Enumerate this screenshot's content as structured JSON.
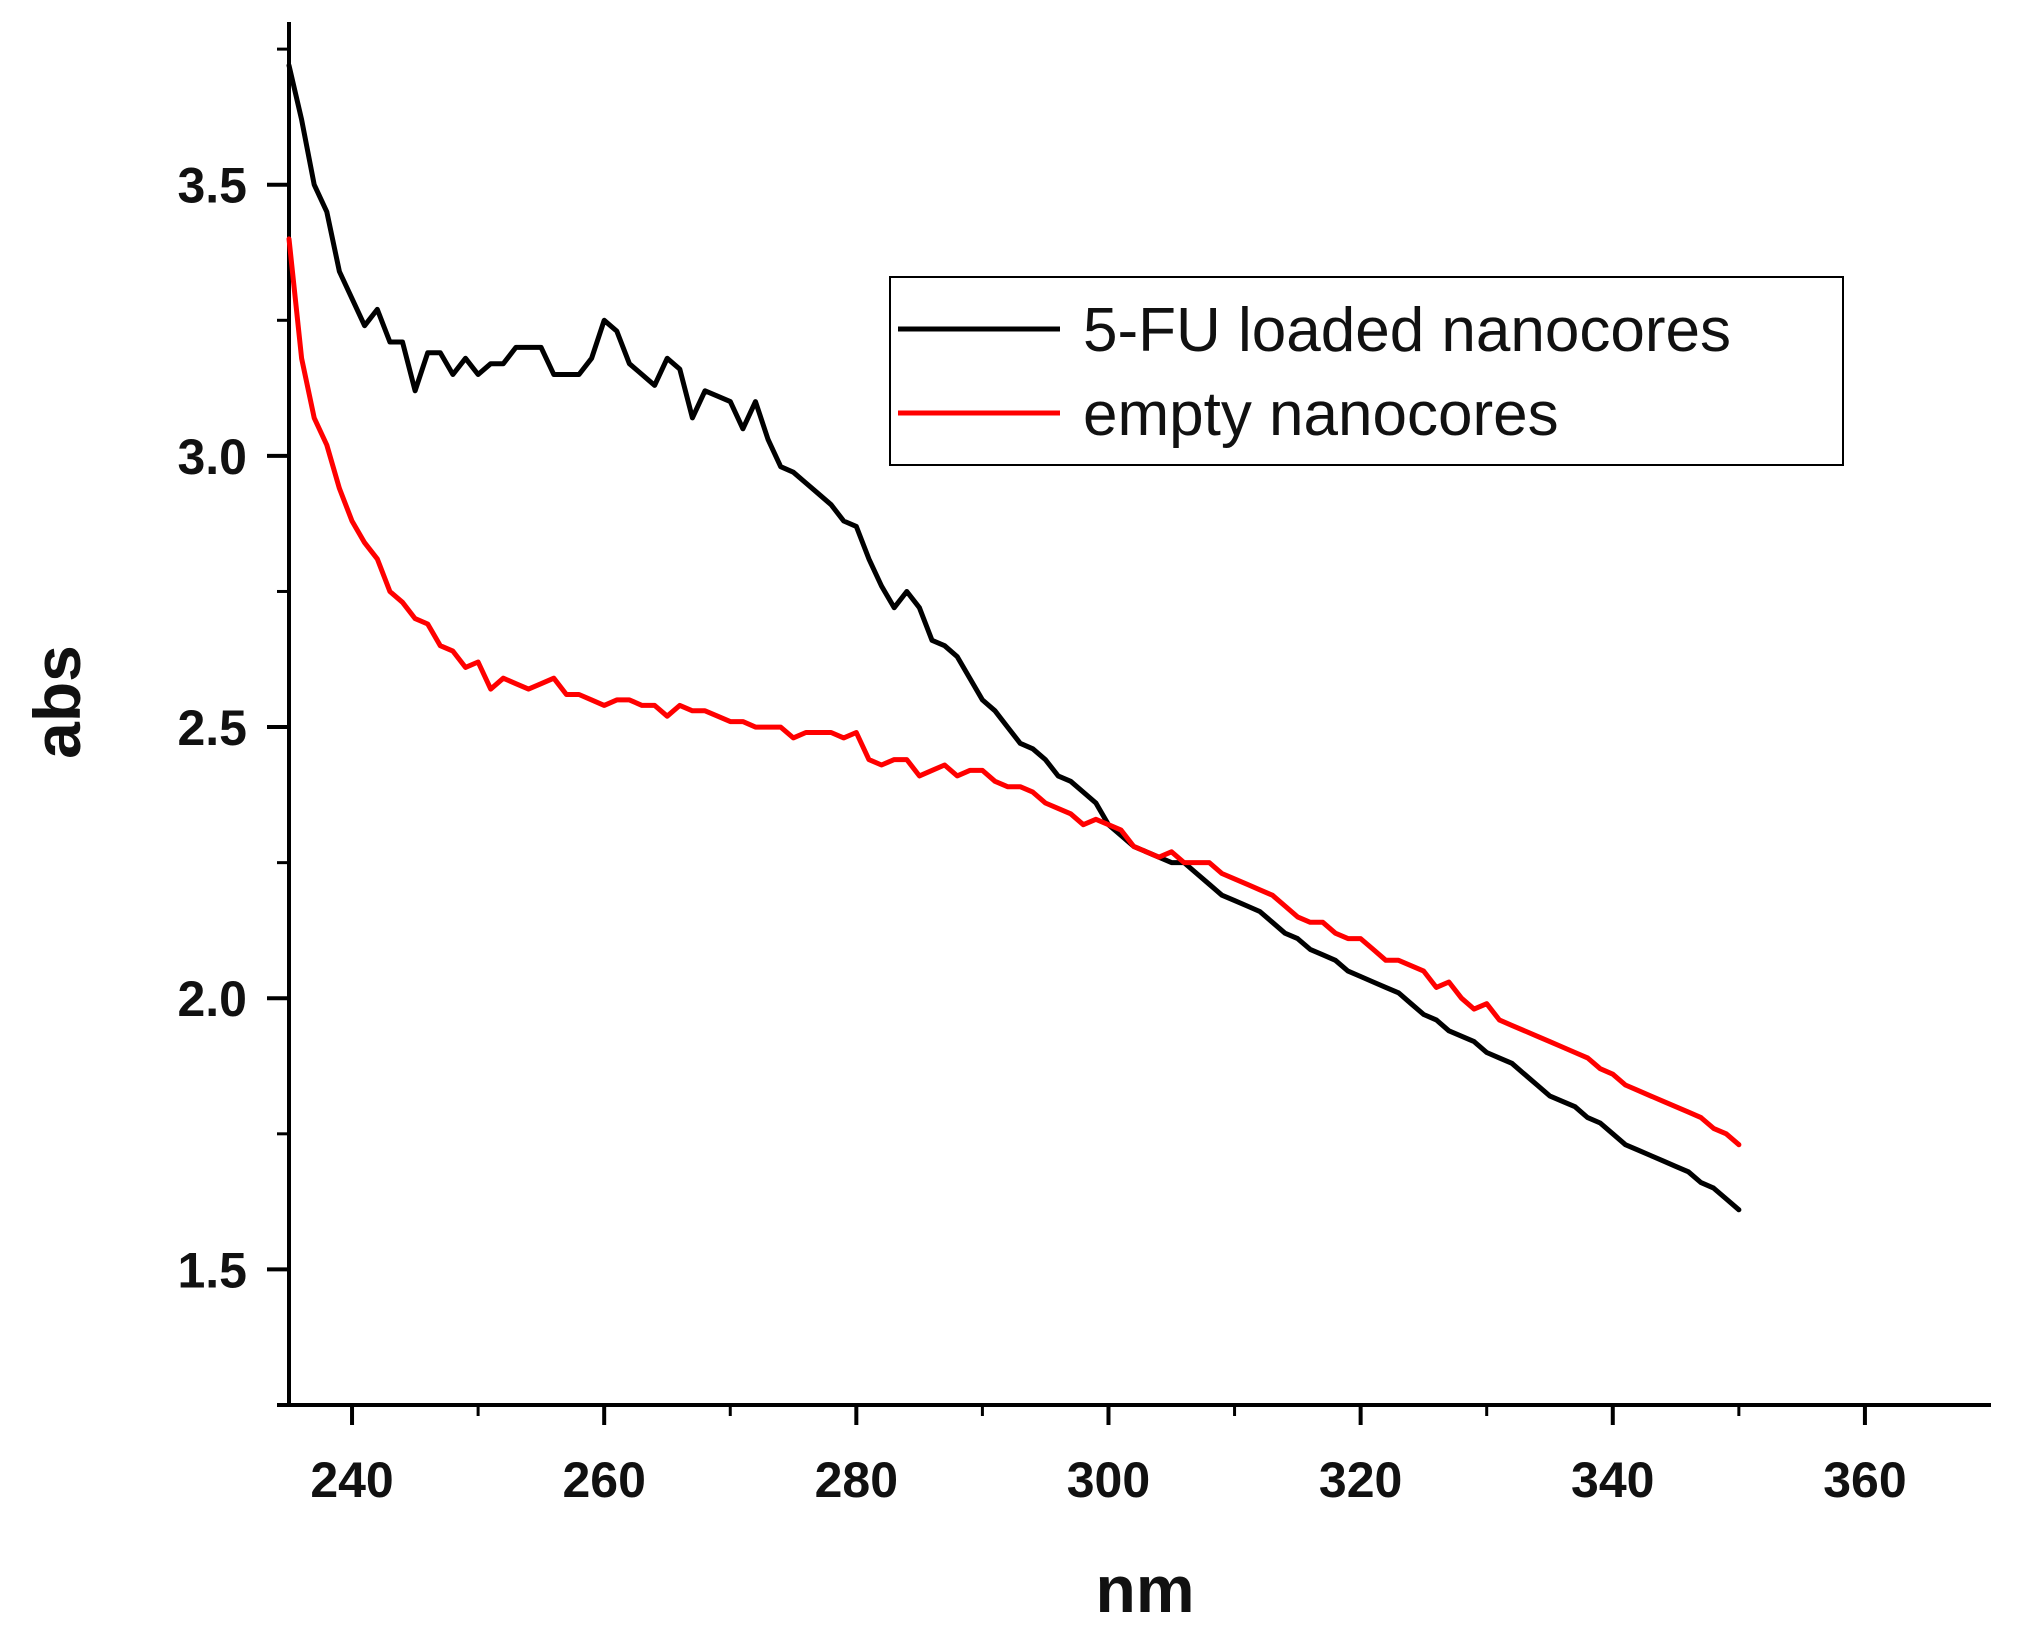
{
  "chart_data": {
    "type": "line",
    "title": "",
    "xlabel": "nm",
    "ylabel": "abs",
    "xlim": [
      235,
      370
    ],
    "ylim": [
      1.25,
      3.8
    ],
    "xticks": [
      240,
      260,
      280,
      300,
      320,
      340,
      360
    ],
    "xtick_labels": [
      "240",
      "260",
      "280",
      "300",
      "320",
      "340",
      "360"
    ],
    "yticks": [
      1.5,
      2.0,
      2.5,
      3.0,
      3.5
    ],
    "ytick_labels": [
      "1.5",
      "2.0",
      "2.5",
      "3.0",
      "3.5"
    ],
    "grid": false,
    "legend_position": "top-right",
    "series": [
      {
        "name": "5-FU loaded nanocores",
        "color": "#000000",
        "x": [
          235,
          236,
          237,
          238,
          239,
          240,
          241,
          242,
          243,
          244,
          245,
          246,
          247,
          248,
          249,
          250,
          251,
          252,
          253,
          254,
          255,
          256,
          257,
          258,
          259,
          260,
          261,
          262,
          263,
          264,
          265,
          266,
          267,
          268,
          269,
          270,
          271,
          272,
          273,
          274,
          275,
          276,
          277,
          278,
          279,
          280,
          281,
          282,
          283,
          284,
          285,
          286,
          287,
          288,
          289,
          290,
          291,
          292,
          293,
          294,
          295,
          296,
          297,
          298,
          299,
          300,
          301,
          302,
          303,
          304,
          305,
          306,
          307,
          308,
          309,
          310,
          311,
          312,
          313,
          314,
          315,
          316,
          317,
          318,
          319,
          320,
          321,
          322,
          323,
          324,
          325,
          326,
          327,
          328,
          329,
          330,
          331,
          332,
          333,
          334,
          335,
          336,
          337,
          338,
          339,
          340,
          341,
          342,
          343,
          344,
          345,
          346,
          347,
          348,
          349,
          350
        ],
        "y": [
          3.72,
          3.62,
          3.5,
          3.45,
          3.34,
          3.29,
          3.24,
          3.27,
          3.21,
          3.21,
          3.12,
          3.19,
          3.19,
          3.15,
          3.18,
          3.15,
          3.17,
          3.17,
          3.2,
          3.2,
          3.2,
          3.15,
          3.15,
          3.15,
          3.18,
          3.25,
          3.23,
          3.17,
          3.15,
          3.13,
          3.18,
          3.16,
          3.07,
          3.12,
          3.11,
          3.1,
          3.05,
          3.1,
          3.03,
          2.98,
          2.97,
          2.95,
          2.93,
          2.91,
          2.88,
          2.87,
          2.81,
          2.76,
          2.72,
          2.75,
          2.72,
          2.66,
          2.65,
          2.63,
          2.59,
          2.55,
          2.53,
          2.5,
          2.47,
          2.46,
          2.44,
          2.41,
          2.4,
          2.38,
          2.36,
          2.32,
          2.3,
          2.28,
          2.27,
          2.26,
          2.25,
          2.25,
          2.23,
          2.21,
          2.19,
          2.18,
          2.17,
          2.16,
          2.14,
          2.12,
          2.11,
          2.09,
          2.08,
          2.07,
          2.05,
          2.04,
          2.03,
          2.02,
          2.01,
          1.99,
          1.97,
          1.96,
          1.94,
          1.93,
          1.92,
          1.9,
          1.89,
          1.88,
          1.86,
          1.84,
          1.82,
          1.81,
          1.8,
          1.78,
          1.77,
          1.75,
          1.73,
          1.72,
          1.71,
          1.7,
          1.69,
          1.68,
          1.66,
          1.65,
          1.63,
          1.61
        ]
      },
      {
        "name": "empty nanocores",
        "color": "#ff0000",
        "x": [
          235,
          236,
          237,
          238,
          239,
          240,
          241,
          242,
          243,
          244,
          245,
          246,
          247,
          248,
          249,
          250,
          251,
          252,
          253,
          254,
          255,
          256,
          257,
          258,
          259,
          260,
          261,
          262,
          263,
          264,
          265,
          266,
          267,
          268,
          269,
          270,
          271,
          272,
          273,
          274,
          275,
          276,
          277,
          278,
          279,
          280,
          281,
          282,
          283,
          284,
          285,
          286,
          287,
          288,
          289,
          290,
          291,
          292,
          293,
          294,
          295,
          296,
          297,
          298,
          299,
          300,
          301,
          302,
          303,
          304,
          305,
          306,
          307,
          308,
          309,
          310,
          311,
          312,
          313,
          314,
          315,
          316,
          317,
          318,
          319,
          320,
          321,
          322,
          323,
          324,
          325,
          326,
          327,
          328,
          329,
          330,
          331,
          332,
          333,
          334,
          335,
          336,
          337,
          338,
          339,
          340,
          341,
          342,
          343,
          344,
          345,
          346,
          347,
          348,
          349,
          350
        ],
        "y": [
          3.4,
          3.18,
          3.07,
          3.02,
          2.94,
          2.88,
          2.84,
          2.81,
          2.75,
          2.73,
          2.7,
          2.69,
          2.65,
          2.64,
          2.61,
          2.62,
          2.57,
          2.59,
          2.58,
          2.57,
          2.58,
          2.59,
          2.56,
          2.56,
          2.55,
          2.54,
          2.55,
          2.55,
          2.54,
          2.54,
          2.52,
          2.54,
          2.53,
          2.53,
          2.52,
          2.51,
          2.51,
          2.5,
          2.5,
          2.5,
          2.48,
          2.49,
          2.49,
          2.49,
          2.48,
          2.49,
          2.44,
          2.43,
          2.44,
          2.44,
          2.41,
          2.42,
          2.43,
          2.41,
          2.42,
          2.42,
          2.4,
          2.39,
          2.39,
          2.38,
          2.36,
          2.35,
          2.34,
          2.32,
          2.33,
          2.32,
          2.31,
          2.28,
          2.27,
          2.26,
          2.27,
          2.25,
          2.25,
          2.25,
          2.23,
          2.22,
          2.21,
          2.2,
          2.19,
          2.17,
          2.15,
          2.14,
          2.14,
          2.12,
          2.11,
          2.11,
          2.09,
          2.07,
          2.07,
          2.06,
          2.05,
          2.02,
          2.03,
          2.0,
          1.98,
          1.99,
          1.96,
          1.95,
          1.94,
          1.93,
          1.92,
          1.91,
          1.9,
          1.89,
          1.87,
          1.86,
          1.84,
          1.83,
          1.82,
          1.81,
          1.8,
          1.79,
          1.78,
          1.76,
          1.75,
          1.73
        ]
      }
    ]
  }
}
